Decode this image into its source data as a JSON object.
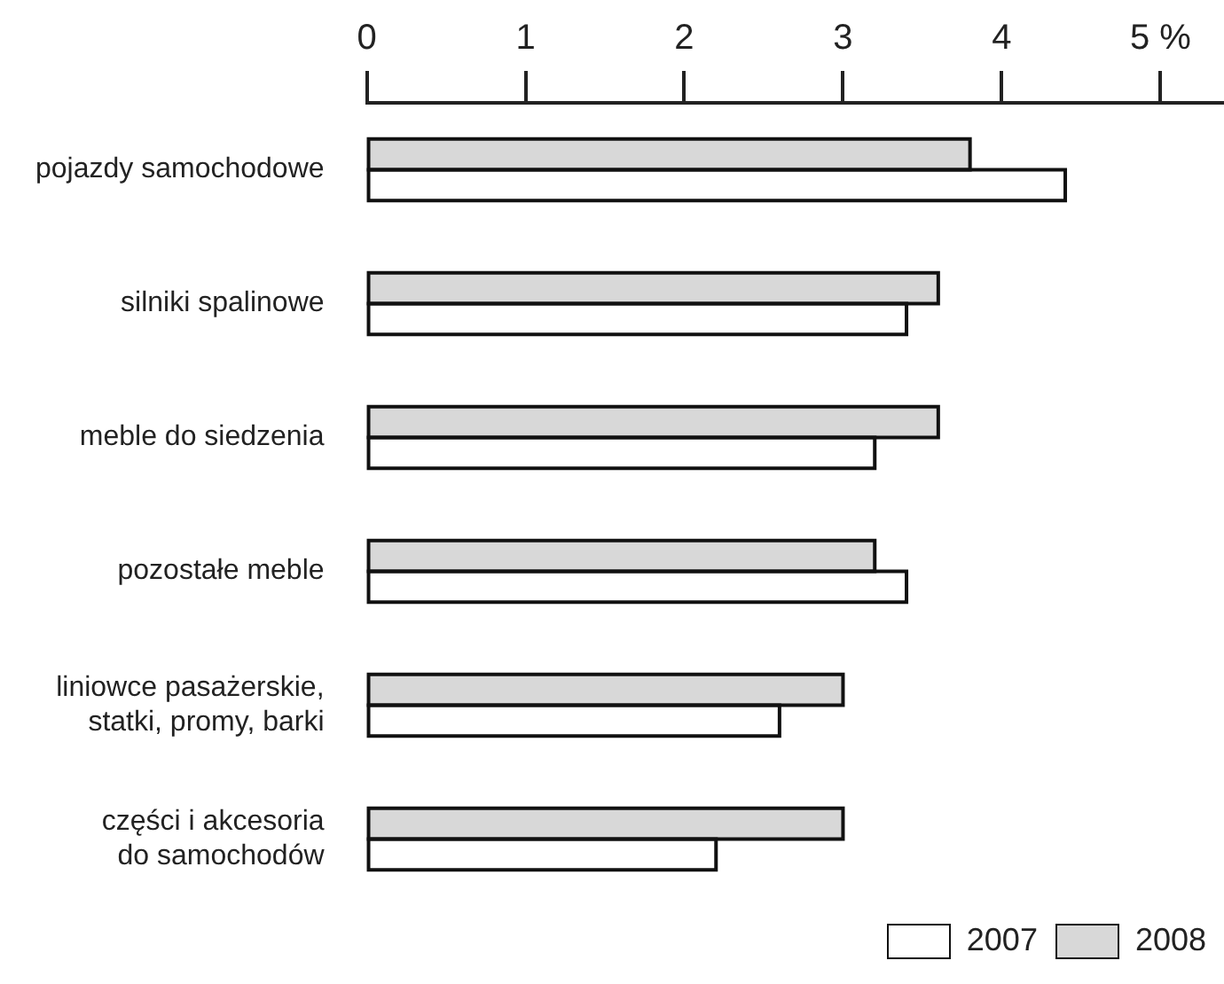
{
  "chart_data": {
    "type": "bar",
    "orientation": "horizontal",
    "categories": [
      "pojazdy samochodowe",
      "silniki spalinowe",
      "meble do siedzenia",
      "pozostałe meble",
      "liniowce pasażerskie,\nstatki, promy, barki",
      "części i akcesoria\ndo samochodów"
    ],
    "series": [
      {
        "name": "2008",
        "color": "#d8d8d8",
        "values": [
          3.8,
          3.6,
          3.6,
          3.2,
          3.0,
          3.0
        ]
      },
      {
        "name": "2007",
        "color": "#ffffff",
        "values": [
          4.4,
          3.4,
          3.2,
          3.4,
          2.6,
          2.2
        ]
      }
    ],
    "xlim": [
      0,
      5.4
    ],
    "xticks": [
      0,
      1,
      2,
      3,
      4,
      {
        "value": 5,
        "label": "5 %"
      }
    ],
    "grid": false,
    "legend": "bottom right"
  }
}
